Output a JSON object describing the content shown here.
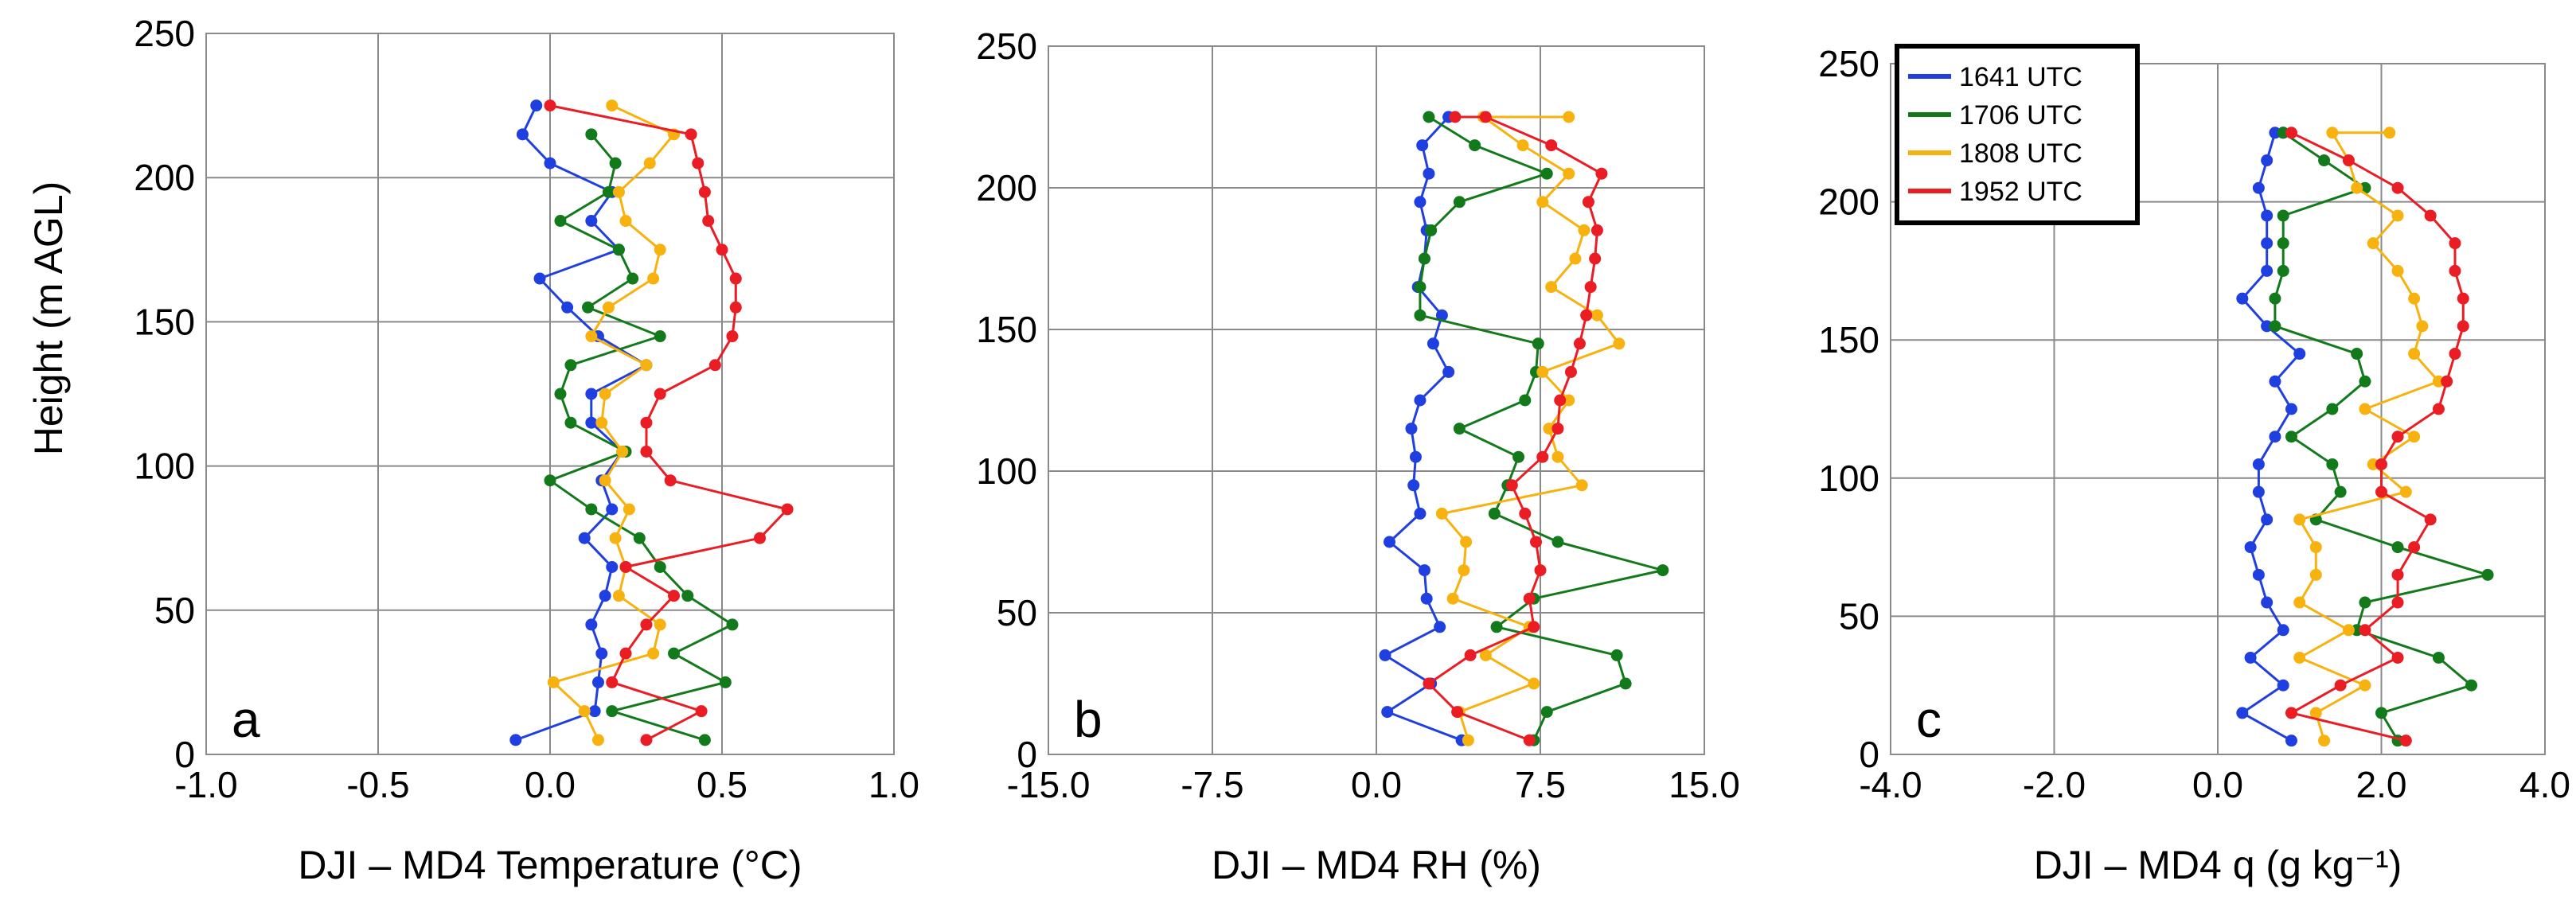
{
  "figure": {
    "ylabel": "Height (m AGL)",
    "legend": [
      {
        "name": "1641 UTC",
        "color": "#1f3fe0"
      },
      {
        "name": "1706 UTC",
        "color": "#137a1c"
      },
      {
        "name": "1808 UTC",
        "color": "#f7b20f"
      },
      {
        "name": "1952 UTC",
        "color": "#ea1c24"
      }
    ]
  },
  "chart_data": [
    {
      "type": "line",
      "panel": "a",
      "title": "",
      "xlabel": "DJI – MD4 Temperature (°C)",
      "ylabel": "Height (m AGL)",
      "xlim": [
        -1.0,
        1.0
      ],
      "ylim": [
        0,
        250
      ],
      "xticks": [
        "-1.0",
        "-0.5",
        "0.0",
        "0.5",
        "1.0"
      ],
      "yticks": [
        "0",
        "50",
        "100",
        "150",
        "200",
        "250"
      ],
      "grid": true,
      "series": [
        {
          "name": "1641 UTC",
          "color": "#1f3fe0",
          "x": [
            -0.1,
            0.13,
            0.14,
            0.15,
            0.12,
            0.16,
            0.18,
            0.1,
            0.18,
            0.15,
            0.21,
            0.12,
            0.12,
            0.28,
            0.14,
            0.05,
            -0.03,
            0.2,
            0.12,
            0.18,
            0,
            -0.08,
            -0.04
          ],
          "y": [
            5,
            15,
            25,
            35,
            45,
            55,
            65,
            75,
            85,
            95,
            105,
            115,
            125,
            135,
            145,
            155,
            165,
            175,
            185,
            195,
            205,
            215,
            225
          ]
        },
        {
          "name": "1706 UTC",
          "color": "#137a1c",
          "x": [
            0.45,
            0.18,
            0.51,
            0.36,
            0.53,
            0.4,
            0.32,
            0.26,
            0.12,
            0,
            0.22,
            0.06,
            0.03,
            0.06,
            0.32,
            0.11,
            0.24,
            0.2,
            0.03,
            0.17,
            0.19,
            0.12
          ],
          "y": [
            5,
            15,
            25,
            35,
            45,
            55,
            65,
            75,
            85,
            95,
            105,
            115,
            125,
            135,
            145,
            155,
            165,
            175,
            185,
            195,
            205,
            215
          ]
        },
        {
          "name": "1808 UTC",
          "color": "#f7b20f",
          "x": [
            0.14,
            0.1,
            0.01,
            0.3,
            0.32,
            0.2,
            0.22,
            0.19,
            0.23,
            0.16,
            0.21,
            0.15,
            0.16,
            0.28,
            0.12,
            0.17,
            0.3,
            0.32,
            0.22,
            0.2,
            0.29,
            0.36,
            0.18
          ],
          "y": [
            5,
            15,
            25,
            35,
            45,
            55,
            65,
            75,
            85,
            95,
            105,
            115,
            125,
            135,
            145,
            155,
            165,
            175,
            185,
            195,
            205,
            215,
            225
          ]
        },
        {
          "name": "1952 UTC",
          "color": "#ea1c24",
          "x": [
            0.28,
            0.44,
            0.18,
            0.22,
            0.28,
            0.36,
            0.22,
            0.61,
            0.69,
            0.35,
            0.28,
            0.28,
            0.32,
            0.48,
            0.53,
            0.54,
            0.54,
            0.5,
            0.46,
            0.45,
            0.43,
            0.41,
            0
          ],
          "y": [
            5,
            15,
            25,
            35,
            45,
            55,
            65,
            75,
            85,
            95,
            105,
            115,
            125,
            135,
            145,
            155,
            165,
            175,
            185,
            195,
            205,
            215,
            225
          ]
        }
      ]
    },
    {
      "type": "line",
      "panel": "b",
      "title": "",
      "xlabel": "DJI – MD4 RH (%)",
      "ylabel": "",
      "xlim": [
        -15.0,
        15.0
      ],
      "ylim": [
        0,
        250
      ],
      "xticks": [
        "-15.0",
        "-7.5",
        "0.0",
        "7.5",
        "15.0"
      ],
      "yticks": [
        "0",
        "50",
        "100",
        "150",
        "200",
        "250"
      ],
      "grid": true,
      "series": [
        {
          "name": "1641 UTC",
          "color": "#1f3fe0",
          "x": [
            3.9,
            0.5,
            2.5,
            0.4,
            2.9,
            2.3,
            2.2,
            0.6,
            2.0,
            1.7,
            1.8,
            1.6,
            2.0,
            3.3,
            2.6,
            3.0,
            1.9,
            2.2,
            2.3,
            2.0,
            2.4,
            2.1,
            3.3,
            3.3
          ],
          "y": [
            5,
            15,
            25,
            35,
            45,
            55,
            65,
            75,
            85,
            95,
            105,
            115,
            125,
            135,
            145,
            155,
            165,
            175,
            185,
            195,
            205,
            215,
            225,
            225
          ]
        },
        {
          "name": "1706 UTC",
          "color": "#137a1c",
          "x": [
            7.2,
            7.8,
            11.4,
            11.0,
            5.5,
            7.2,
            13.1,
            8.3,
            5.4,
            6.0,
            6.5,
            3.8,
            6.8,
            7.3,
            7.4,
            2.0,
            2.0,
            2.2,
            2.5,
            3.8,
            7.8,
            4.5,
            2.4
          ],
          "y": [
            5,
            15,
            25,
            35,
            45,
            55,
            65,
            75,
            85,
            95,
            105,
            115,
            125,
            135,
            145,
            155,
            165,
            175,
            185,
            195,
            205,
            215,
            225
          ]
        },
        {
          "name": "1808 UTC",
          "color": "#f7b20f",
          "x": [
            4.2,
            3.8,
            7.2,
            5.0,
            7.0,
            3.5,
            4.0,
            4.1,
            3.0,
            9.4,
            8.3,
            7.9,
            8.8,
            7.6,
            11.1,
            10.1,
            8.0,
            9.1,
            9.5,
            7.6,
            8.8,
            6.7,
            4.9,
            8.8
          ],
          "y": [
            5,
            15,
            25,
            35,
            45,
            55,
            65,
            75,
            85,
            95,
            105,
            115,
            125,
            135,
            145,
            155,
            165,
            175,
            185,
            195,
            205,
            215,
            225,
            225
          ]
        },
        {
          "name": "1952 UTC",
          "color": "#ea1c24",
          "x": [
            7.0,
            3.7,
            2.4,
            4.3,
            7.2,
            7.0,
            7.5,
            7.3,
            6.8,
            6.2,
            7.6,
            8.3,
            8.4,
            8.9,
            9.3,
            9.6,
            9.8,
            10.0,
            10.1,
            9.7,
            10.3,
            8.0,
            5.0,
            3.6
          ],
          "y": [
            5,
            15,
            25,
            35,
            45,
            55,
            65,
            75,
            85,
            95,
            105,
            115,
            125,
            135,
            145,
            155,
            165,
            175,
            185,
            195,
            205,
            215,
            225,
            225
          ]
        }
      ]
    },
    {
      "type": "line",
      "panel": "c",
      "title": "",
      "xlabel": "DJI – MD4 q (g kg⁻¹)",
      "ylabel": "",
      "xlim": [
        -4.0,
        4.0
      ],
      "ylim": [
        0,
        250
      ],
      "xticks": [
        "-4.0",
        "-2.0",
        "0.0",
        "2.0",
        "4.0"
      ],
      "yticks": [
        "0",
        "50",
        "100",
        "150",
        "200",
        "250"
      ],
      "grid": true,
      "series": [
        {
          "name": "1641 UTC",
          "color": "#1f3fe0",
          "x": [
            0.9,
            0.3,
            0.8,
            0.4,
            0.8,
            0.6,
            0.5,
            0.4,
            0.6,
            0.5,
            0.5,
            0.7,
            0.9,
            0.7,
            1.0,
            0.6,
            0.3,
            0.6,
            0.6,
            0.6,
            0.5,
            0.6,
            0.7,
            0.8
          ],
          "y": [
            5,
            15,
            25,
            35,
            45,
            55,
            65,
            75,
            85,
            95,
            105,
            115,
            125,
            135,
            145,
            155,
            165,
            175,
            185,
            195,
            205,
            215,
            225,
            225
          ]
        },
        {
          "name": "1706 UTC",
          "color": "#137a1c",
          "x": [
            2.2,
            2.0,
            3.1,
            2.7,
            1.7,
            1.8,
            3.3,
            2.2,
            1.2,
            1.5,
            1.4,
            0.9,
            1.4,
            1.8,
            1.7,
            0.7,
            0.7,
            0.8,
            0.8,
            0.8,
            1.8,
            1.3,
            0.8
          ],
          "y": [
            5,
            15,
            25,
            35,
            45,
            55,
            65,
            75,
            85,
            95,
            105,
            115,
            125,
            135,
            145,
            155,
            165,
            175,
            185,
            195,
            205,
            215,
            225
          ]
        },
        {
          "name": "1808 UTC",
          "color": "#f7b20f",
          "x": [
            1.3,
            1.2,
            1.8,
            1.0,
            1.6,
            1.0,
            1.2,
            1.2,
            1.0,
            2.3,
            1.9,
            2.4,
            1.8,
            2.7,
            2.4,
            2.5,
            2.4,
            2.2,
            1.9,
            2.2,
            1.7,
            1.6,
            1.4,
            2.1
          ],
          "y": [
            5,
            15,
            25,
            35,
            45,
            55,
            65,
            75,
            85,
            95,
            105,
            115,
            125,
            135,
            145,
            155,
            165,
            175,
            185,
            195,
            205,
            215,
            225,
            225
          ]
        },
        {
          "name": "1952 UTC",
          "color": "#ea1c24",
          "x": [
            2.3,
            0.9,
            1.5,
            2.2,
            1.8,
            2.2,
            2.2,
            2.4,
            2.6,
            2.0,
            2.0,
            2.2,
            2.7,
            2.8,
            2.9,
            3.0,
            3.0,
            2.9,
            2.9,
            2.6,
            2.2,
            1.6,
            0.9
          ],
          "y": [
            5,
            15,
            25,
            35,
            45,
            55,
            65,
            75,
            85,
            95,
            105,
            115,
            125,
            135,
            145,
            155,
            165,
            175,
            185,
            195,
            205,
            215,
            225
          ]
        }
      ]
    }
  ]
}
